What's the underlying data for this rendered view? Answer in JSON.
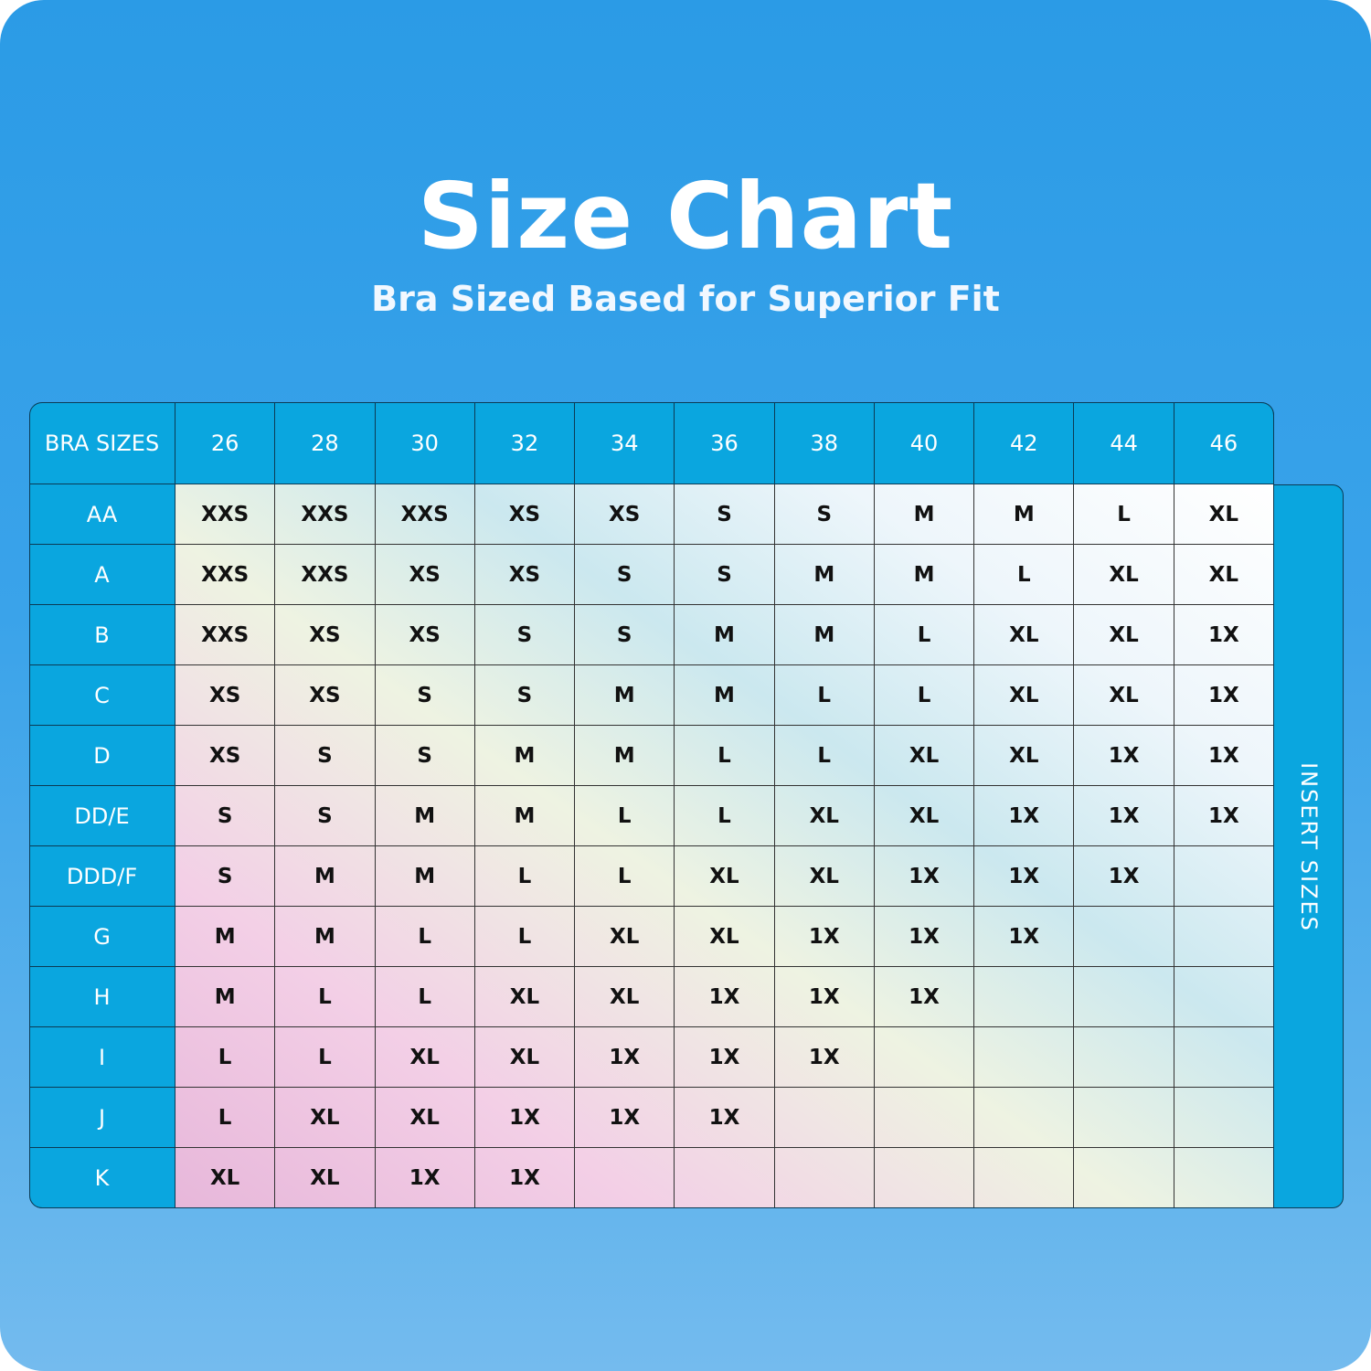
{
  "header": {
    "title": "Size Chart",
    "subtitle": "Bra Sized Based for Superior Fit"
  },
  "table": {
    "corner": "BRA SIZES",
    "columns": [
      "26",
      "28",
      "30",
      "32",
      "34",
      "36",
      "38",
      "40",
      "42",
      "44",
      "46"
    ],
    "rows": [
      {
        "label": "AA",
        "cells": [
          "XXS",
          "XXS",
          "XXS",
          "XS",
          "XS",
          "S",
          "S",
          "M",
          "M",
          "L",
          "XL"
        ]
      },
      {
        "label": "A",
        "cells": [
          "XXS",
          "XXS",
          "XS",
          "XS",
          "S",
          "S",
          "M",
          "M",
          "L",
          "XL",
          "XL"
        ]
      },
      {
        "label": "B",
        "cells": [
          "XXS",
          "XS",
          "XS",
          "S",
          "S",
          "M",
          "M",
          "L",
          "XL",
          "XL",
          "1X"
        ]
      },
      {
        "label": "C",
        "cells": [
          "XS",
          "XS",
          "S",
          "S",
          "M",
          "M",
          "L",
          "L",
          "XL",
          "XL",
          "1X"
        ]
      },
      {
        "label": "D",
        "cells": [
          "XS",
          "S",
          "S",
          "M",
          "M",
          "L",
          "L",
          "XL",
          "XL",
          "1X",
          "1X"
        ]
      },
      {
        "label": "DD/E",
        "cells": [
          "S",
          "S",
          "M",
          "M",
          "L",
          "L",
          "XL",
          "XL",
          "1X",
          "1X",
          "1X"
        ]
      },
      {
        "label": "DDD/F",
        "cells": [
          "S",
          "M",
          "M",
          "L",
          "L",
          "XL",
          "XL",
          "1X",
          "1X",
          "1X"
        ]
      },
      {
        "label": "G",
        "cells": [
          "M",
          "M",
          "L",
          "L",
          "XL",
          "XL",
          "1X",
          "1X",
          "1X"
        ]
      },
      {
        "label": "H",
        "cells": [
          "M",
          "L",
          "L",
          "XL",
          "XL",
          "1X",
          "1X",
          "1X"
        ]
      },
      {
        "label": "I",
        "cells": [
          "L",
          "L",
          "XL",
          "XL",
          "1X",
          "1X",
          "1X"
        ]
      },
      {
        "label": "J",
        "cells": [
          "L",
          "XL",
          "XL",
          "1X",
          "1X",
          "1X"
        ]
      },
      {
        "label": "K",
        "cells": [
          "XL",
          "XL",
          "1X",
          "1X"
        ]
      }
    ],
    "side_label": "INSERT SIZES"
  }
}
